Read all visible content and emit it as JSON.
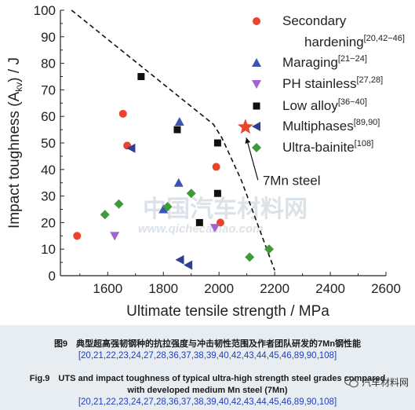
{
  "chart_data": {
    "type": "scatter",
    "xlabel": "Ultimate tensile strength / MPa",
    "ylabel": "Impact toughness (A",
    "ylabel_sub": "kv",
    "ylabel_tail": ") / J",
    "xlim": [
      1430,
      2600
    ],
    "ylim": [
      0,
      100
    ],
    "x_ticks": [
      1600,
      1800,
      2000,
      2200,
      2400,
      2600
    ],
    "y_ticks": [
      0,
      10,
      20,
      30,
      40,
      50,
      60,
      70,
      80,
      90,
      100
    ],
    "legend_position": "top-right",
    "series": [
      {
        "name": "Secondary",
        "name_line2": "hardening",
        "refs": "[20,42−46]",
        "marker": "circle",
        "color": "#e8452c",
        "points": [
          [
            1490,
            15
          ],
          [
            1655,
            61
          ],
          [
            1670,
            49
          ],
          [
            1990,
            41
          ],
          [
            2005,
            20
          ]
        ]
      },
      {
        "name": "Maraging",
        "refs": "[21−24]",
        "marker": "triangle-up",
        "color": "#3a56b0",
        "points": [
          [
            1800,
            25
          ],
          [
            1855,
            35
          ],
          [
            1858,
            58
          ]
        ]
      },
      {
        "name": "PH stainless",
        "refs": "[27,28]",
        "marker": "triangle-down",
        "color": "#a463d4",
        "points": [
          [
            1625,
            15
          ],
          [
            1985,
            18
          ]
        ]
      },
      {
        "name": "Low alloy",
        "refs": "[36−40]",
        "marker": "square",
        "color": "#111111",
        "points": [
          [
            1720,
            75
          ],
          [
            1850,
            55
          ],
          [
            1995,
            50
          ],
          [
            1995,
            31
          ],
          [
            1930,
            20
          ]
        ]
      },
      {
        "name": "Multiphases",
        "refs": "[89,90]",
        "marker": "triangle-left",
        "color": "#2e3f8f",
        "points": [
          [
            1685,
            48
          ],
          [
            1860,
            6
          ],
          [
            1890,
            4
          ]
        ]
      },
      {
        "name": "Ultra-bainite",
        "refs": "[108]",
        "marker": "diamond",
        "color": "#3f9a3a",
        "points": [
          [
            1590,
            23
          ],
          [
            1640,
            27
          ],
          [
            1815,
            26
          ],
          [
            1900,
            31
          ],
          [
            2110,
            7
          ],
          [
            2180,
            10
          ]
        ]
      }
    ],
    "highlight": {
      "name": "7Mn steel",
      "marker": "star",
      "color": "#e8452c",
      "point": [
        2095,
        56
      ]
    },
    "annotation_arrow": {
      "from": [
        2140,
        36
      ],
      "to": [
        2098,
        52
      ]
    },
    "boundary_line": [
      [
        1470,
        100
      ],
      [
        1980,
        57
      ],
      [
        2010,
        52
      ],
      [
        2080,
        36
      ],
      [
        2200,
        2
      ]
    ]
  },
  "watermark": {
    "text": "中国汽车材料网",
    "url": "www.qichecailiao.com"
  },
  "caption": {
    "cn": "图9　典型超高强韧钢种的抗拉强度与冲击韧性范围及作者团队研发的7Mn钢性能",
    "refs": "[20,21,22,23,24,27,28,36,37,38,39,40,42,43,44,45,46,89,90,108]",
    "en_line1": "Fig.9　UTS and impact toughness of typical ultra-high strength steel grades compared",
    "en_line2": "with developed medium Mn steel (7Mn)",
    "refs2": "[20,21,22,23,24,27,28,36,37,38,39,40,42,43,44,45,46,89,90,108]"
  },
  "wechat_label": "汽车材料网",
  "icons": {
    "wechat": "wechat-icon"
  }
}
